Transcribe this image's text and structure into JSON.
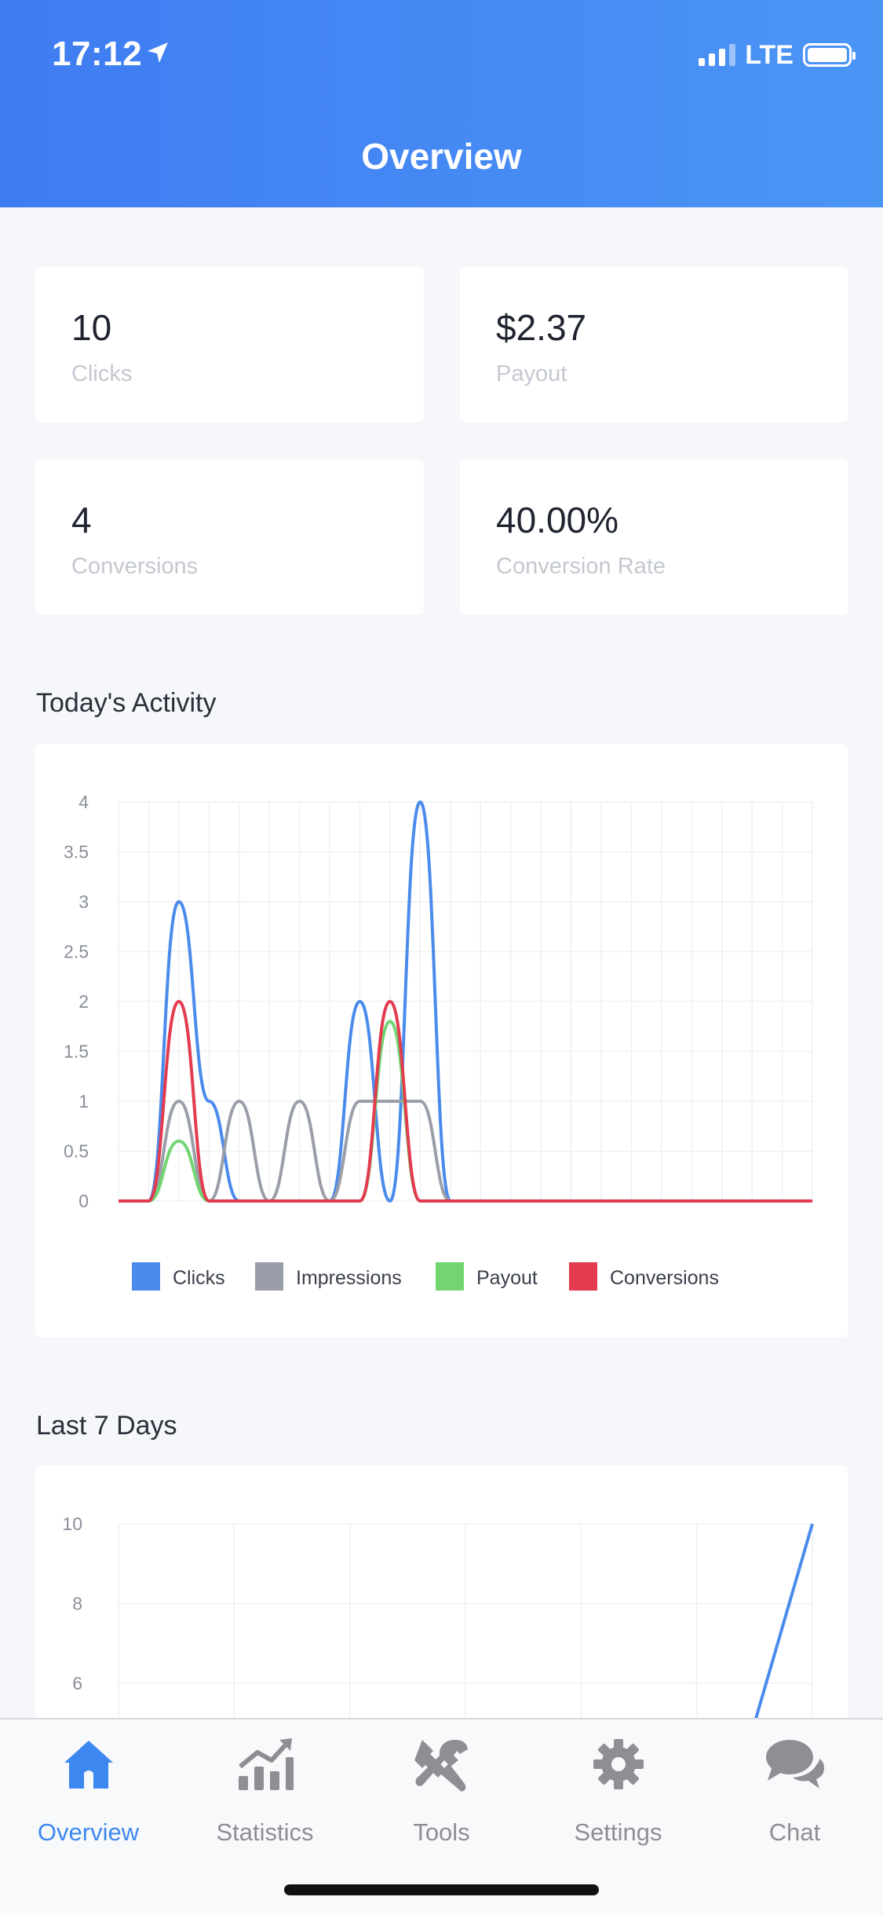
{
  "status_bar": {
    "time": "17:12",
    "network": "LTE"
  },
  "header": {
    "title": "Overview"
  },
  "stats": [
    {
      "value": "10",
      "label": "Clicks"
    },
    {
      "value": "$2.37",
      "label": "Payout"
    },
    {
      "value": "4",
      "label": "Conversions"
    },
    {
      "value": "40.00%",
      "label": "Conversion Rate"
    }
  ],
  "sections": {
    "today": "Today's Activity",
    "last7": "Last 7 Days"
  },
  "chart_data": [
    {
      "type": "line",
      "title": "",
      "ylim": [
        0,
        4
      ],
      "yticks": [
        "0",
        "0.5",
        "1",
        "1.5",
        "2",
        "2.5",
        "3",
        "3.5",
        "4"
      ],
      "x": [
        0,
        1,
        2,
        3,
        4,
        5,
        6,
        7,
        8,
        9,
        10,
        11,
        12,
        13,
        14,
        15,
        16,
        17,
        18,
        19,
        20,
        21,
        22,
        23
      ],
      "grid": true,
      "legend_position": "bottom",
      "series": [
        {
          "name": "Clicks",
          "color": "#4a8bec",
          "values": [
            0,
            0,
            3,
            1,
            0,
            0,
            0,
            0,
            2,
            0,
            4,
            0,
            0,
            0,
            0,
            0,
            0,
            0,
            0,
            0,
            0,
            0,
            0,
            0
          ]
        },
        {
          "name": "Impressions",
          "color": "#999ea8",
          "values": [
            0,
            0,
            1,
            0,
            1,
            0,
            1,
            0,
            1,
            1,
            1,
            0,
            0,
            0,
            0,
            0,
            0,
            0,
            0,
            0,
            0,
            0,
            0,
            0
          ]
        },
        {
          "name": "Payout",
          "color": "#72d572",
          "values": [
            0,
            0,
            0.6,
            0,
            0,
            0,
            0,
            0,
            0,
            1.8,
            0,
            0,
            0,
            0,
            0,
            0,
            0,
            0,
            0,
            0,
            0,
            0,
            0,
            0
          ]
        },
        {
          "name": "Conversions",
          "color": "#e33b4f",
          "values": [
            0,
            0,
            2,
            0,
            0,
            0,
            0,
            0,
            0,
            2,
            0,
            0,
            0,
            0,
            0,
            0,
            0,
            0,
            0,
            0,
            0,
            0,
            0,
            0
          ]
        }
      ]
    },
    {
      "type": "line",
      "title": "",
      "ylim": [
        0,
        10
      ],
      "yticks_visible": [
        "6",
        "8",
        "10"
      ],
      "x": [
        0,
        1,
        2,
        3,
        4,
        5,
        6
      ],
      "grid": true,
      "series": [
        {
          "name": "",
          "color": "#4a8bec",
          "values": [
            0,
            0,
            0,
            0,
            0,
            0,
            10
          ]
        }
      ]
    }
  ],
  "tabs": [
    {
      "label": "Overview",
      "icon": "home-icon",
      "active": true
    },
    {
      "label": "Statistics",
      "icon": "statistics-icon",
      "active": false
    },
    {
      "label": "Tools",
      "icon": "tools-icon",
      "active": false
    },
    {
      "label": "Settings",
      "icon": "gear-icon",
      "active": false
    },
    {
      "label": "Chat",
      "icon": "chat-icon",
      "active": false
    }
  ],
  "colors": {
    "accent": "#3d88f0",
    "header_start": "#3f7cf2",
    "header_end": "#4b95f5",
    "tab_inactive": "#8e8e93"
  }
}
